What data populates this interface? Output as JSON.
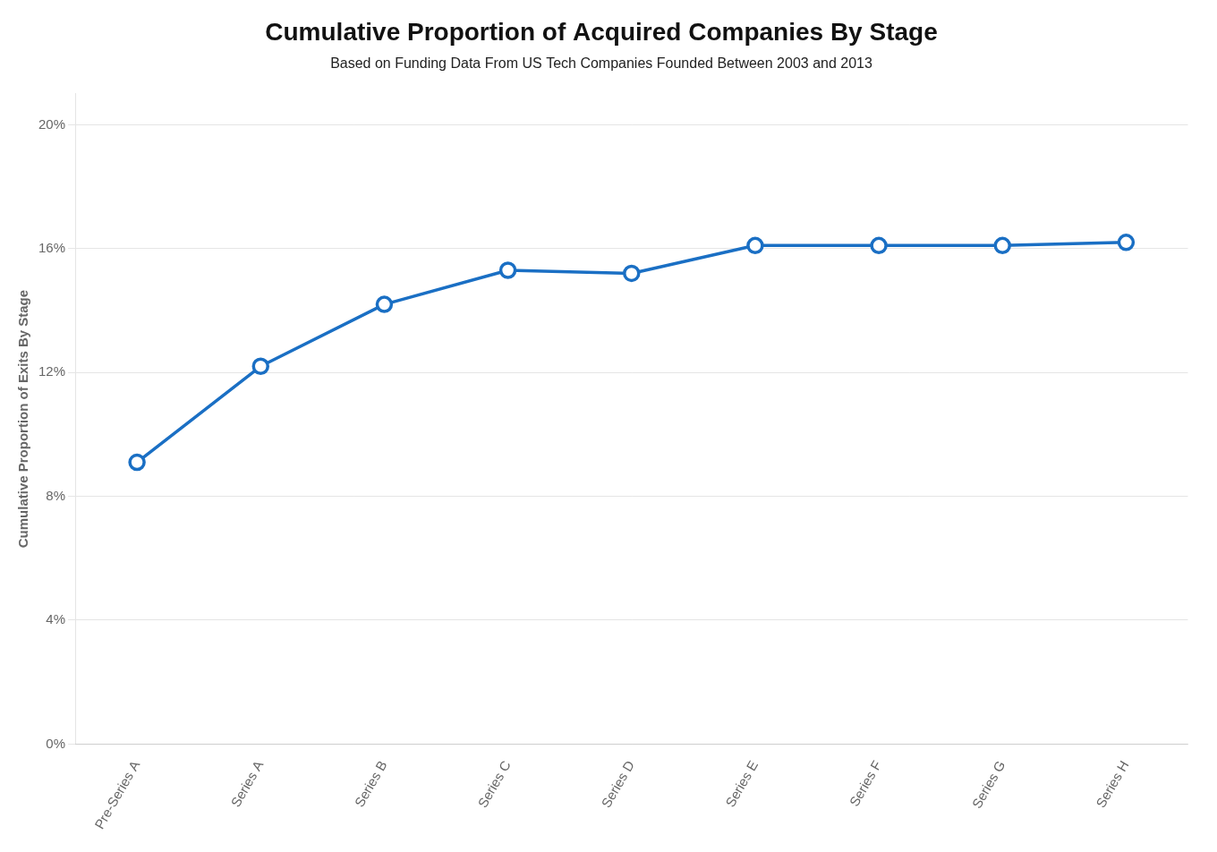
{
  "chart_data": {
    "type": "line",
    "title": "Cumulative Proportion of Acquired Companies By Stage",
    "subtitle": "Based on Funding Data From US Tech Companies Founded Between 2003 and 2013",
    "ylabel": "Cumulative Proportion of Exits By Stage",
    "categories": [
      "Pre-Series A",
      "Series A",
      "Series B",
      "Series C",
      "Series D",
      "Series E",
      "Series F",
      "Series G",
      "Series H"
    ],
    "values": [
      0.091,
      0.122,
      0.142,
      0.153,
      0.152,
      0.161,
      0.161,
      0.161,
      0.162
    ],
    "color": "#1a6fc4",
    "marker": "circle",
    "ylim": [
      0,
      0.21
    ],
    "yticks": [
      {
        "value": 0,
        "label": "0%"
      },
      {
        "value": 0.04,
        "label": "4%"
      },
      {
        "value": 0.08,
        "label": "8%"
      },
      {
        "value": 0.12,
        "label": "12%"
      },
      {
        "value": 0.16,
        "label": "16%"
      },
      {
        "value": 0.2,
        "label": "20%"
      }
    ],
    "grid": "y"
  }
}
